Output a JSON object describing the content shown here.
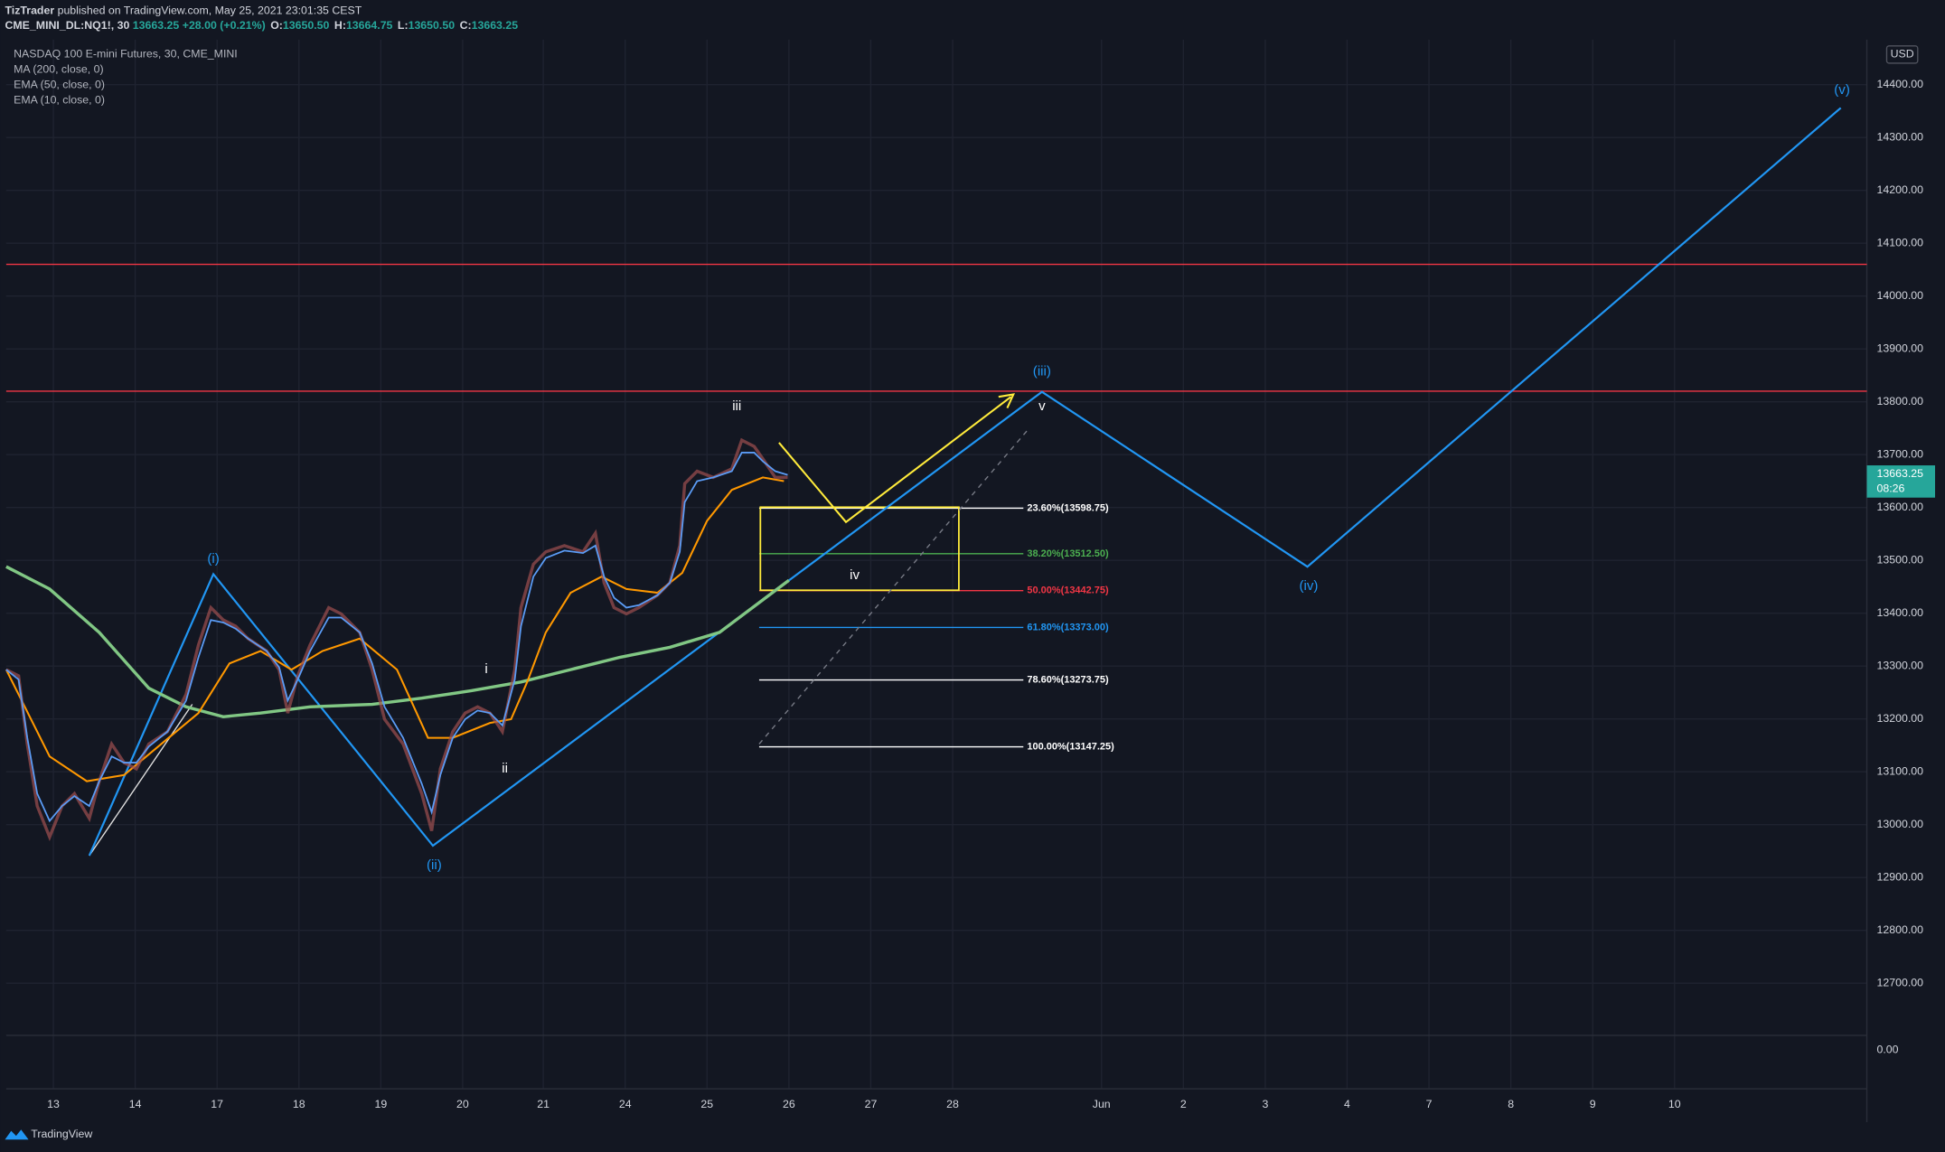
{
  "header": {
    "author": "TizTrader",
    "published": "published on TradingView.com, May 25, 2021 23:01:35 CEST",
    "symbol": "CME_MINI_DL:NQ1!, 30",
    "last": "13663.25",
    "change": "+28.00 (+0.21%)",
    "ohlc": [
      {
        "key": "O:",
        "value": "13650.50"
      },
      {
        "key": "H:",
        "value": "13664.75"
      },
      {
        "key": "L:",
        "value": "13650.50"
      },
      {
        "key": "C:",
        "value": "13663.25"
      }
    ]
  },
  "legend": [
    "NASDAQ 100 E-mini Futures, 30, CME_MINI",
    "MA (200, close, 0)",
    "EMA (50, close, 0)",
    "EMA (10, close, 0)"
  ],
  "currency": "USD",
  "price_ticks": [
    {
      "value": 14400,
      "label": "14400.00"
    },
    {
      "value": 14300,
      "label": "14300.00"
    },
    {
      "value": 14200,
      "label": "14200.00"
    },
    {
      "value": 14100,
      "label": "14100.00"
    },
    {
      "value": 14000,
      "label": "14000.00"
    },
    {
      "value": 13900,
      "label": "13900.00"
    },
    {
      "value": 13800,
      "label": "13800.00"
    },
    {
      "value": 13700,
      "label": "13700.00"
    },
    {
      "value": 13600,
      "label": "13600.00"
    },
    {
      "value": 13500,
      "label": "13500.00"
    },
    {
      "value": 13400,
      "label": "13400.00"
    },
    {
      "value": 13300,
      "label": "13300.00"
    },
    {
      "value": 13200,
      "label": "13200.00"
    },
    {
      "value": 13100,
      "label": "13100.00"
    },
    {
      "value": 13000,
      "label": "13000.00"
    },
    {
      "value": 12900,
      "label": "12900.00"
    },
    {
      "value": 12800,
      "label": "12800.00"
    },
    {
      "value": 12700,
      "label": "12700.00"
    }
  ],
  "lower_pane_label": "0.00",
  "price_tag": {
    "price": 13663.25,
    "label": "13663.25",
    "timer": "08:26"
  },
  "dates": [
    "13",
    "14",
    "17",
    "18",
    "19",
    "20",
    "21",
    "24",
    "25",
    "26",
    "27",
    "28",
    "Jun",
    "2",
    "3",
    "4",
    "7",
    "8",
    "9",
    "10"
  ],
  "resistance_levels": [
    14060,
    13820
  ],
  "fib_levels": [
    {
      "label": "23.60%(13598.75)",
      "price": 13598.75,
      "color": "#ffffff"
    },
    {
      "label": "38.20%(13512.50)",
      "price": 13512.5,
      "color": "#4caf50"
    },
    {
      "label": "50.00%(13442.75)",
      "price": 13442.75,
      "color": "#f23645"
    },
    {
      "label": "61.80%(13373.00)",
      "price": 13373,
      "color": "#2196f3"
    },
    {
      "label": "78.60%(13273.75)",
      "price": 13273.75,
      "color": "#ffffff"
    },
    {
      "label": "100.00%(13147.25)",
      "price": 13147.25,
      "color": "#ffffff"
    }
  ],
  "waves": {
    "major": [
      "(i)",
      "(ii)",
      "(iii)",
      "(iv)",
      "(v)"
    ],
    "minor": [
      "i",
      "ii",
      "iii",
      "iv",
      "v"
    ]
  },
  "brand": "TradingView"
}
